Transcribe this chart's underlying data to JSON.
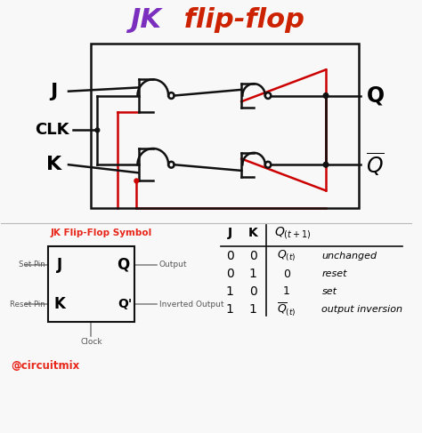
{
  "title_jk": "JK",
  "title_flip": " flip-flop",
  "title_color_left": "#7B2FBE",
  "title_color_right": "#CC2200",
  "bg_color": "#F8F8F8",
  "symbol_title": "JK Flip-Flop Symbol",
  "symbol_title_color": "#E8261A",
  "instagram": "@circuitmix",
  "instagram_color": "#E8261A",
  "lw": 1.8,
  "red_color": "#CC0000",
  "black_color": "#111111"
}
